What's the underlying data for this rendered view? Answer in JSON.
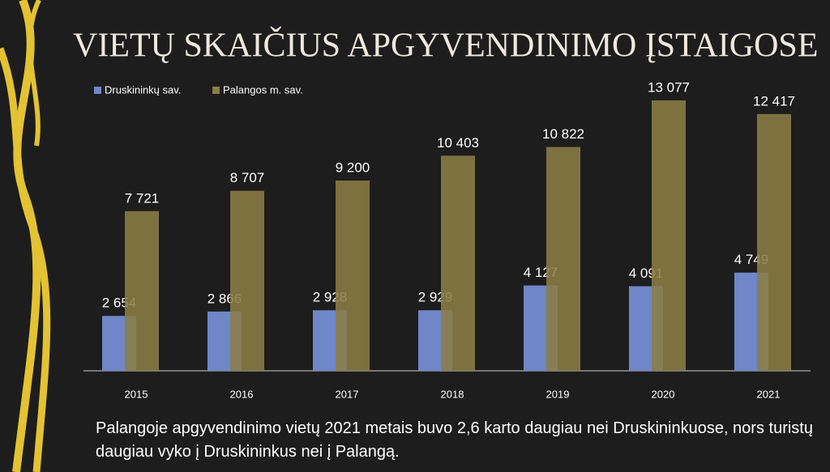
{
  "chart_data": {
    "type": "bar",
    "title": "VIETŲ SKAIČIUS APGYVENDINIMO ĮSTAIGOSE",
    "categories": [
      "2015",
      "2016",
      "2017",
      "2018",
      "2019",
      "2020",
      "2021"
    ],
    "series": [
      {
        "name": "Druskininkų sav.",
        "color": "#6f86c8",
        "values": [
          2654,
          2866,
          2928,
          2929,
          4127,
          4091,
          4749
        ],
        "value_labels": [
          "2 654",
          "2 866",
          "2 928",
          "2 929",
          "4 127",
          "4 091",
          "4 749"
        ]
      },
      {
        "name": "Palangos m. sav.",
        "color": "#8c7d45",
        "values": [
          7721,
          8707,
          9200,
          10403,
          10822,
          13077,
          12417
        ],
        "value_labels": [
          "7 721",
          "8 707",
          "9 200",
          "10 403",
          "10 822",
          "13 077",
          "12 417"
        ]
      }
    ],
    "caption": "Palangoje apgyvendinimo vietų 2021 metais buvo 2,6 karto daugiau nei Druskininkuose, nors turistų daugiau vyko į Druskininkus nei į Palangą."
  }
}
